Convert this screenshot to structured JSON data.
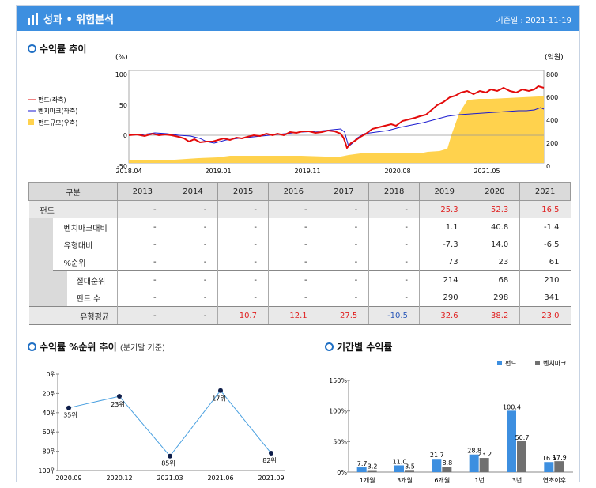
{
  "header": {
    "title": "성과 • 위험분석",
    "date": "기준일 :   2021-11-19"
  },
  "section1": {
    "title": "수익률 추이"
  },
  "chart_main": {
    "y_left_unit": "(%)",
    "y_right_unit": "(억원)",
    "left_ticks": [
      "100",
      "50",
      "0",
      "-50"
    ],
    "right_ticks": [
      "800",
      "600",
      "400",
      "200",
      "0"
    ],
    "x_ticks": [
      "2018.04",
      "2019.01",
      "2019.11",
      "2020.08",
      "2021.05"
    ],
    "legend": [
      "펀드(좌축)",
      "벤치마크(좌축)",
      "펀드규모(우축)"
    ],
    "colors": {
      "fund": "#e30b0b",
      "benchmark": "#1a1ad0",
      "size": "#ffd24d"
    }
  },
  "table": {
    "header": [
      "구분",
      "2013",
      "2014",
      "2015",
      "2016",
      "2017",
      "2018",
      "2019",
      "2020",
      "2021"
    ],
    "rows": [
      {
        "label": "펀드",
        "values": [
          "-",
          "-",
          "-",
          "-",
          "-",
          "-",
          "25.3",
          "52.3",
          "16.5"
        ]
      },
      {
        "label": "벤치마크대비",
        "values": [
          "-",
          "-",
          "-",
          "-",
          "-",
          "-",
          "1.1",
          "40.8",
          "-1.4"
        ]
      },
      {
        "label": "유형대비",
        "values": [
          "-",
          "-",
          "-",
          "-",
          "-",
          "-",
          "-7.3",
          "14.0",
          "-6.5"
        ]
      },
      {
        "label": "%순위",
        "values": [
          "-",
          "-",
          "-",
          "-",
          "-",
          "-",
          "73",
          "23",
          "61"
        ]
      },
      {
        "label": "절대순위",
        "values": [
          "-",
          "-",
          "-",
          "-",
          "-",
          "-",
          "214",
          "68",
          "210"
        ]
      },
      {
        "label": "펀드 수",
        "values": [
          "-",
          "-",
          "-",
          "-",
          "-",
          "-",
          "290",
          "298",
          "341"
        ]
      },
      {
        "label": "유형평균",
        "values": [
          "-",
          "-",
          "10.7",
          "12.1",
          "27.5",
          "-10.5",
          "32.6",
          "38.2",
          "23.0"
        ]
      }
    ]
  },
  "section2": {
    "title": "수익률 %순위 추이",
    "subtitle": "(분기말 기준)"
  },
  "section3": {
    "title": "기간별 수익률"
  },
  "chart_data": [
    {
      "type": "line",
      "x": [
        "2020.09",
        "2020.12",
        "2021.03",
        "2021.06",
        "2021.09"
      ],
      "series": [
        {
          "name": "%순위",
          "values": [
            35,
            23,
            85,
            17,
            82
          ],
          "labels": [
            "35위",
            "23위",
            "85위",
            "17위",
            "82위"
          ]
        }
      ],
      "y_ticks": [
        "0위",
        "20위",
        "40위",
        "60위",
        "80위",
        "100위"
      ],
      "ylim": [
        0,
        100
      ],
      "y_inverted": true
    },
    {
      "type": "bar",
      "categories": [
        "1개월",
        "3개월",
        "6개월",
        "1년",
        "3년",
        "연초이후"
      ],
      "series": [
        {
          "name": "펀드",
          "values": [
            7.7,
            11.0,
            21.7,
            28.8,
            100.4,
            16.5
          ],
          "color": "#3d8fe0"
        },
        {
          "name": "벤치마크",
          "values": [
            3.2,
            3.5,
            8.8,
            23.2,
            50.7,
            17.9
          ],
          "color": "#707070"
        }
      ],
      "y_ticks": [
        "150%",
        "100%",
        "50%",
        "0%"
      ],
      "ylim": [
        0,
        150
      ]
    }
  ]
}
